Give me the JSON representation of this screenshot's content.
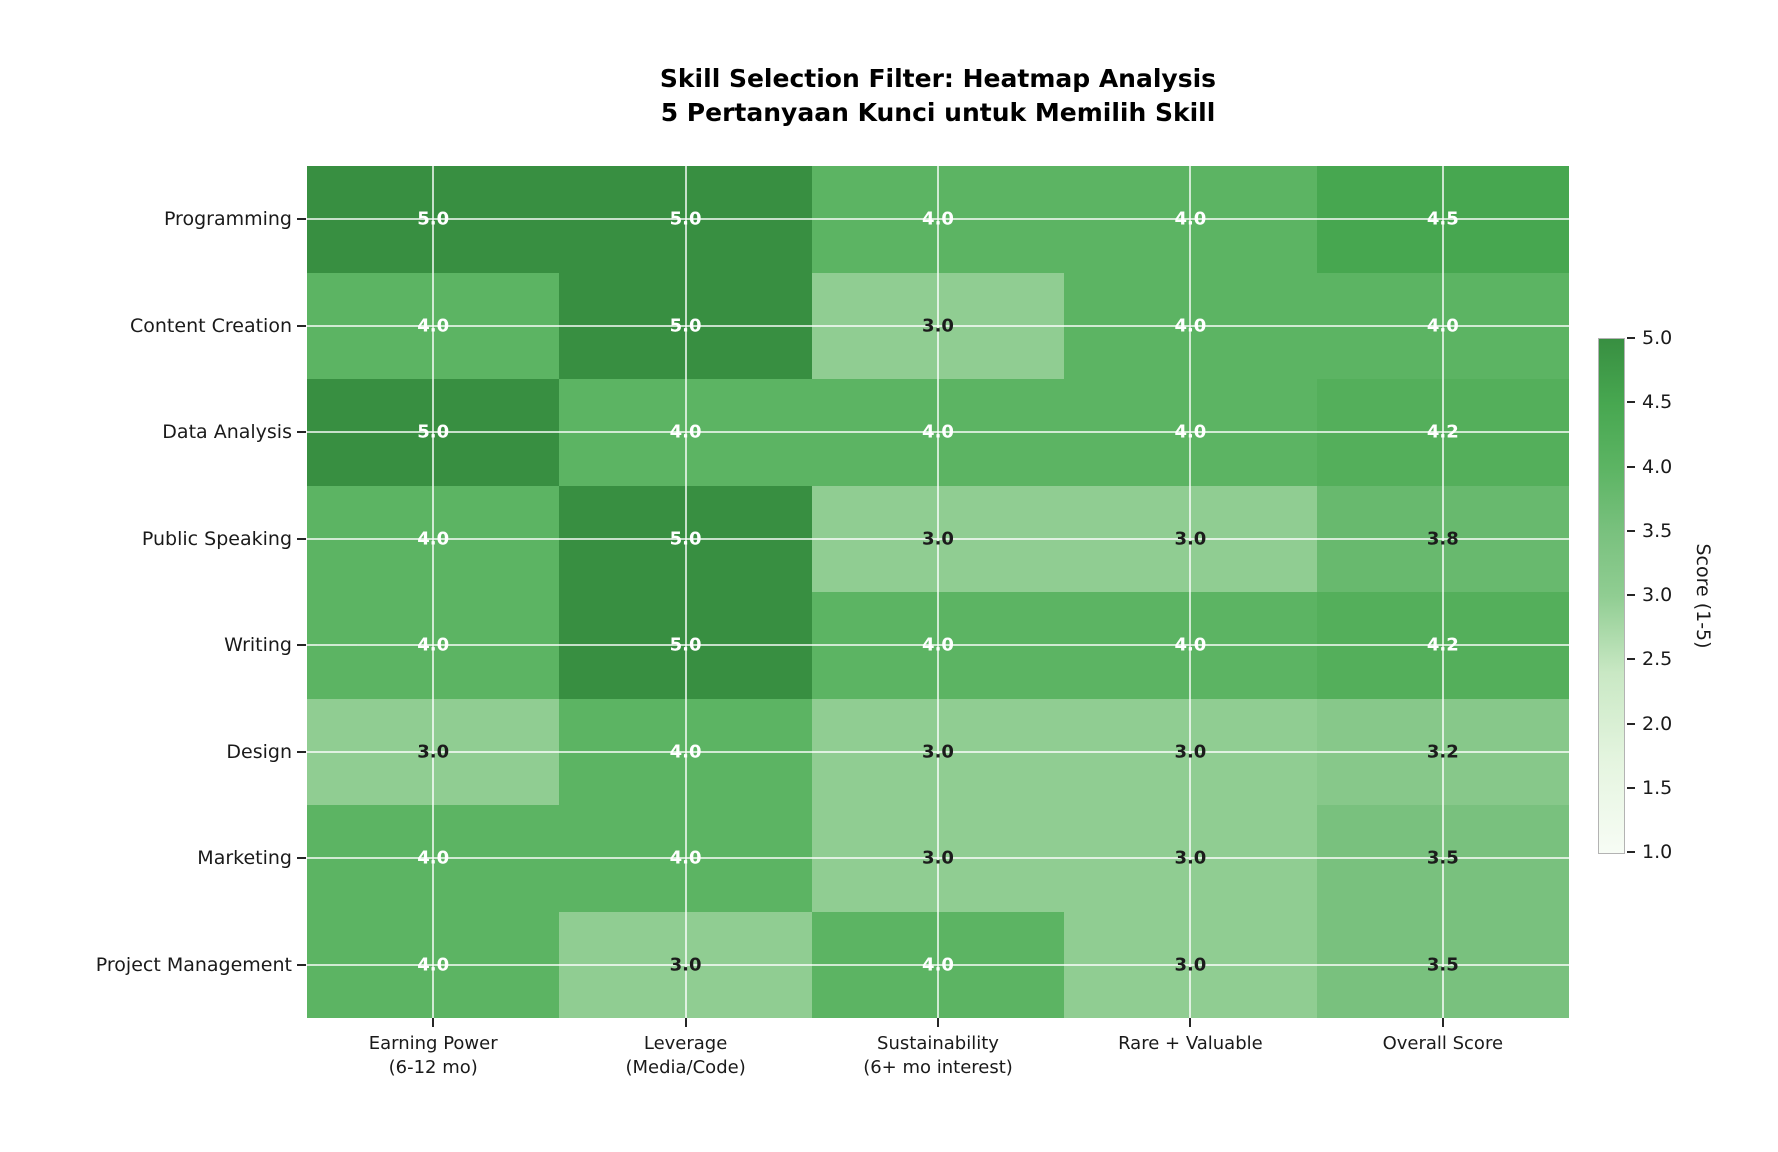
{
  "title": {
    "line1": "Skill Selection Filter: Heatmap Analysis",
    "line2": "5 Pertanyaan Kunci untuk Memilih Skill"
  },
  "chart_data": {
    "type": "heatmap",
    "title": "Skill Selection Filter: Heatmap Analysis",
    "subtitle": "5 Pertanyaan Kunci untuk Memilih Skill",
    "rows": [
      "Programming",
      "Content Creation",
      "Data Analysis",
      "Public Speaking",
      "Writing",
      "Design",
      "Marketing",
      "Project Management"
    ],
    "columns": [
      [
        "Earning Power",
        "(6-12 mo)"
      ],
      [
        "Leverage",
        "(Media/Code)"
      ],
      [
        "Sustainability",
        "(6+ mo interest)"
      ],
      [
        "Rare + Valuable"
      ],
      [
        "Overall Score"
      ]
    ],
    "values": [
      [
        5.0,
        5.0,
        4.0,
        4.0,
        4.5
      ],
      [
        4.0,
        5.0,
        3.0,
        4.0,
        4.0
      ],
      [
        5.0,
        4.0,
        4.0,
        4.0,
        4.2
      ],
      [
        4.0,
        5.0,
        3.0,
        3.0,
        3.8
      ],
      [
        4.0,
        5.0,
        4.0,
        4.0,
        4.2
      ],
      [
        3.0,
        4.0,
        3.0,
        3.0,
        3.2
      ],
      [
        4.0,
        4.0,
        3.0,
        3.0,
        3.5
      ],
      [
        4.0,
        3.0,
        4.0,
        3.0,
        3.5
      ]
    ],
    "vmin": 1.0,
    "vmax": 5.0,
    "grid": true,
    "colorbar": {
      "label": "Score (1-5)",
      "position": "right",
      "ticks": [
        5.0,
        4.5,
        4.0,
        3.5,
        3.0,
        2.5,
        2.0,
        1.5,
        1.0
      ]
    },
    "color_scale": [
      {
        "value": 1.0,
        "color": "#f7fcf5"
      },
      {
        "value": 1.7,
        "color": "#e5f5e0"
      },
      {
        "value": 2.4,
        "color": "#c9e8c4"
      },
      {
        "value": 3.0,
        "color": "#90cd92"
      },
      {
        "value": 3.5,
        "color": "#79c17e"
      },
      {
        "value": 4.0,
        "color": "#5cb463"
      },
      {
        "value": 4.5,
        "color": "#47a750"
      },
      {
        "value": 5.0,
        "color": "#388f41"
      }
    ],
    "value_text_colors": {
      "light": "#ffffff",
      "dark": "#1c1c1c",
      "light_threshold": 4.0
    }
  }
}
